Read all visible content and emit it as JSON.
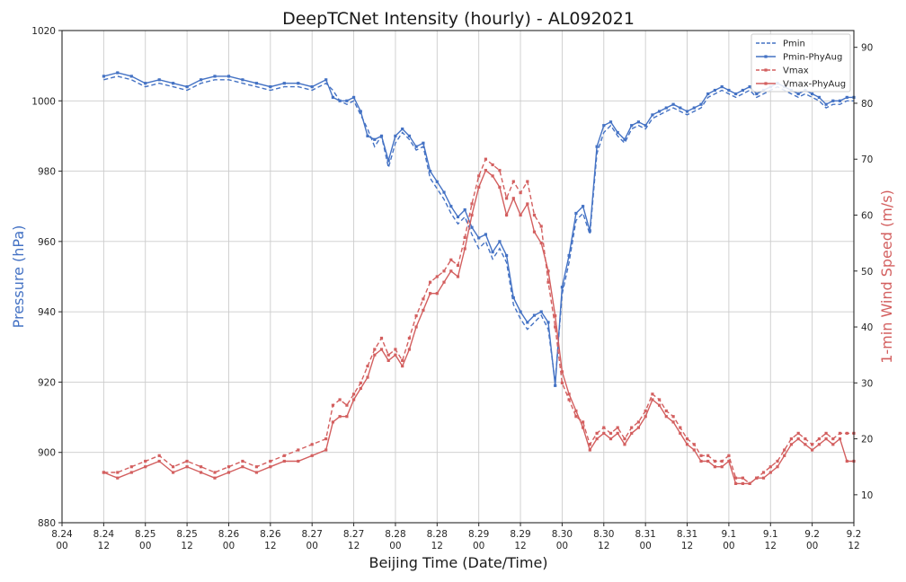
{
  "chart_data": {
    "type": "line",
    "title": "DeepTCNet Intensity (hourly) - AL092021",
    "xlabel": "Beijing Time (Date/Time)",
    "ylabel_left": "Pressure (hPa)",
    "ylabel_right": "1-min Wind Speed (m/s)",
    "x_tick_labels": [
      [
        "8.24",
        "00"
      ],
      [
        "8.24",
        "12"
      ],
      [
        "8.25",
        "00"
      ],
      [
        "8.25",
        "12"
      ],
      [
        "8.26",
        "00"
      ],
      [
        "8.26",
        "12"
      ],
      [
        "8.27",
        "00"
      ],
      [
        "8.27",
        "12"
      ],
      [
        "8.28",
        "00"
      ],
      [
        "8.28",
        "12"
      ],
      [
        "8.29",
        "00"
      ],
      [
        "8.29",
        "12"
      ],
      [
        "8.30",
        "00"
      ],
      [
        "8.30",
        "12"
      ],
      [
        "8.31",
        "00"
      ],
      [
        "8.31",
        "12"
      ],
      [
        "9.1",
        "00"
      ],
      [
        "9.1",
        "12"
      ],
      [
        "9.2",
        "00"
      ],
      [
        "9.2",
        "12"
      ]
    ],
    "ylim_left": [
      880,
      1020
    ],
    "yticks_left": [
      880,
      900,
      920,
      940,
      960,
      980,
      1000,
      1020
    ],
    "ylim_right": [
      5,
      93
    ],
    "yticks_right": [
      10,
      20,
      30,
      40,
      50,
      60,
      70,
      80,
      90
    ],
    "grid": true,
    "legend_position": "top-right",
    "colors": {
      "pressure": "#4472c4",
      "wind": "#d35f5f"
    },
    "x_unit": "hours since 8.24 00",
    "series": [
      {
        "name": "Pmin",
        "axis": "left",
        "style": "dashed",
        "x": [
          12,
          16,
          20,
          24,
          28,
          32,
          36,
          40,
          44,
          48,
          52,
          56,
          60,
          64,
          68,
          72,
          76,
          78,
          80,
          82,
          84,
          86,
          88,
          90,
          92,
          94,
          96,
          98,
          100,
          102,
          104,
          106,
          108,
          110,
          112,
          114,
          116,
          118,
          120,
          122,
          124,
          126,
          128,
          130,
          132,
          134,
          136,
          138,
          140,
          142,
          144,
          146,
          148,
          150,
          152,
          154,
          156,
          158,
          160,
          162,
          164,
          166,
          168,
          170,
          172,
          174,
          176,
          178,
          180,
          182,
          184,
          186,
          188,
          190,
          192,
          194,
          196,
          198,
          200,
          202,
          204,
          206,
          208,
          210,
          212,
          214,
          216,
          218,
          220,
          222,
          224,
          226,
          228
        ],
        "values": [
          1006,
          1007,
          1006,
          1004,
          1005,
          1004,
          1003,
          1005,
          1006,
          1006,
          1005,
          1004,
          1003,
          1004,
          1004,
          1003,
          1005,
          1003,
          1000,
          999,
          1000,
          996,
          992,
          987,
          990,
          981,
          988,
          991,
          989,
          986,
          987,
          978,
          975,
          972,
          968,
          965,
          967,
          962,
          958,
          960,
          955,
          958,
          954,
          942,
          938,
          935,
          937,
          939,
          935,
          920,
          945,
          954,
          966,
          968,
          962,
          985,
          991,
          993,
          990,
          988,
          992,
          993,
          992,
          995,
          996,
          997,
          998,
          997,
          996,
          997,
          998,
          1001,
          1002,
          1003,
          1002,
          1001,
          1002,
          1003,
          1001,
          1002,
          1003,
          1004,
          1003,
          1002,
          1001,
          1002,
          1001,
          1000,
          998,
          999,
          999,
          1000,
          1000
        ]
      },
      {
        "name": "Pmin-PhyAug",
        "axis": "left",
        "style": "solid-marker",
        "x": [
          12,
          16,
          20,
          24,
          28,
          32,
          36,
          40,
          44,
          48,
          52,
          56,
          60,
          64,
          68,
          72,
          76,
          78,
          80,
          82,
          84,
          86,
          88,
          90,
          92,
          94,
          96,
          98,
          100,
          102,
          104,
          106,
          108,
          110,
          112,
          114,
          116,
          118,
          120,
          122,
          124,
          126,
          128,
          130,
          132,
          134,
          136,
          138,
          140,
          142,
          144,
          146,
          148,
          150,
          152,
          154,
          156,
          158,
          160,
          162,
          164,
          166,
          168,
          170,
          172,
          174,
          176,
          178,
          180,
          182,
          184,
          186,
          188,
          190,
          192,
          194,
          196,
          198,
          200,
          202,
          204,
          206,
          208,
          210,
          212,
          214,
          216,
          218,
          220,
          222,
          224,
          226,
          228
        ],
        "values": [
          1007,
          1008,
          1007,
          1005,
          1006,
          1005,
          1004,
          1006,
          1007,
          1007,
          1006,
          1005,
          1004,
          1005,
          1005,
          1004,
          1006,
          1001,
          1000,
          1000,
          1001,
          997,
          990,
          989,
          990,
          983,
          990,
          992,
          990,
          987,
          988,
          980,
          977,
          974,
          970,
          967,
          969,
          964,
          961,
          962,
          957,
          960,
          956,
          944,
          940,
          937,
          939,
          940,
          937,
          919,
          947,
          956,
          968,
          970,
          963,
          987,
          993,
          994,
          991,
          989,
          993,
          994,
          993,
          996,
          997,
          998,
          999,
          998,
          997,
          998,
          999,
          1002,
          1003,
          1004,
          1003,
          1002,
          1003,
          1004,
          1002,
          1003,
          1004,
          1005,
          1004,
          1003,
          1002,
          1003,
          1002,
          1001,
          999,
          1000,
          1000,
          1001,
          1001
        ]
      },
      {
        "name": "Vmax",
        "axis": "right",
        "style": "dashed-marker",
        "x": [
          12,
          16,
          20,
          24,
          28,
          32,
          36,
          40,
          44,
          48,
          52,
          56,
          60,
          64,
          68,
          72,
          76,
          78,
          80,
          82,
          84,
          86,
          88,
          90,
          92,
          94,
          96,
          98,
          100,
          102,
          104,
          106,
          108,
          110,
          112,
          114,
          116,
          118,
          120,
          122,
          124,
          126,
          128,
          130,
          132,
          134,
          136,
          138,
          140,
          142,
          144,
          146,
          148,
          150,
          152,
          154,
          156,
          158,
          160,
          162,
          164,
          166,
          168,
          170,
          172,
          174,
          176,
          178,
          180,
          182,
          184,
          186,
          188,
          190,
          192,
          194,
          196,
          198,
          200,
          202,
          204,
          206,
          208,
          210,
          212,
          214,
          216,
          218,
          220,
          222,
          224,
          226,
          228
        ],
        "values": [
          14,
          14,
          15,
          16,
          17,
          15,
          16,
          15,
          14,
          15,
          16,
          15,
          16,
          17,
          18,
          19,
          20,
          26,
          27,
          26,
          28,
          30,
          33,
          36,
          38,
          35,
          36,
          34,
          38,
          42,
          45,
          48,
          49,
          50,
          52,
          51,
          56,
          62,
          67,
          70,
          69,
          68,
          63,
          66,
          64,
          66,
          60,
          58,
          48,
          40,
          30,
          27,
          24,
          23,
          19,
          21,
          22,
          21,
          22,
          20,
          22,
          23,
          25,
          28,
          27,
          25,
          24,
          22,
          20,
          19,
          17,
          17,
          16,
          16,
          17,
          13,
          13,
          12,
          13,
          14,
          15,
          16,
          18,
          20,
          21,
          20,
          19,
          20,
          21,
          20,
          21,
          21,
          21
        ]
      },
      {
        "name": "Vmax-PhyAug",
        "axis": "right",
        "style": "solid-marker",
        "x": [
          12,
          16,
          20,
          24,
          28,
          32,
          36,
          40,
          44,
          48,
          52,
          56,
          60,
          64,
          68,
          72,
          76,
          78,
          80,
          82,
          84,
          86,
          88,
          90,
          92,
          94,
          96,
          98,
          100,
          102,
          104,
          106,
          108,
          110,
          112,
          114,
          116,
          118,
          120,
          122,
          124,
          126,
          128,
          130,
          132,
          134,
          136,
          138,
          140,
          142,
          144,
          146,
          148,
          150,
          152,
          154,
          156,
          158,
          160,
          162,
          164,
          166,
          168,
          170,
          172,
          174,
          176,
          178,
          180,
          182,
          184,
          186,
          188,
          190,
          192,
          194,
          196,
          198,
          200,
          202,
          204,
          206,
          208,
          210,
          212,
          214,
          216,
          218,
          220,
          222,
          224,
          226,
          228
        ],
        "values": [
          14,
          13,
          14,
          15,
          16,
          14,
          15,
          14,
          13,
          14,
          15,
          14,
          15,
          16,
          16,
          17,
          18,
          23,
          24,
          24,
          27,
          29,
          31,
          35,
          36,
          34,
          35,
          33,
          36,
          40,
          43,
          46,
          46,
          48,
          50,
          49,
          54,
          60,
          65,
          68,
          67,
          65,
          60,
          63,
          60,
          62,
          57,
          55,
          50,
          42,
          32,
          28,
          25,
          22,
          18,
          20,
          21,
          20,
          21,
          19,
          21,
          22,
          24,
          27,
          26,
          24,
          23,
          21,
          19,
          18,
          16,
          16,
          15,
          15,
          16,
          12,
          12,
          12,
          13,
          13,
          14,
          15,
          17,
          19,
          20,
          19,
          18,
          19,
          20,
          19,
          20,
          16,
          16
        ]
      }
    ]
  }
}
